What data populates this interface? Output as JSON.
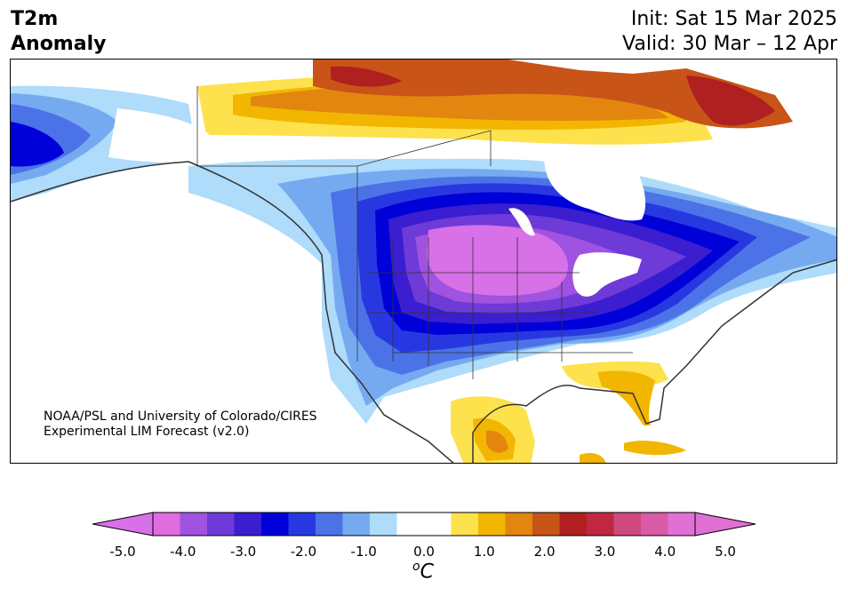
{
  "header": {
    "title_line1": "T2m",
    "title_line2": "Anomaly",
    "init": "Init: Sat 15 Mar 2025",
    "valid": "Valid: 30 Mar – 12 Apr"
  },
  "credit": {
    "line1": "NOAA/PSL and University of Colorado/CIRES",
    "line2": "Experimental LIM Forecast (v2.0)"
  },
  "colorbar": {
    "unit_symbol": "o",
    "unit_letter": "C",
    "tick_labels": [
      "-5.0",
      "-4.0",
      "-3.0",
      "-2.0",
      "-1.0",
      "0.0",
      "1.0",
      "2.0",
      "3.0",
      "4.0",
      "5.0"
    ],
    "colors": [
      "#e06ce0",
      "#a052e0",
      "#6e3ad8",
      "#3a1ed0",
      "#0000d8",
      "#2838e0",
      "#4c72e8",
      "#76aaf0",
      "#aedcfa",
      "#ffffff",
      "#ffffff",
      "#fde24e",
      "#f2b600",
      "#e28610",
      "#c85418",
      "#b02020",
      "#c02840",
      "#d04880",
      "#d85ca8",
      "#e070d4"
    ],
    "under_color": "#d870e8",
    "over_color": "#e070d4"
  },
  "map_colors": {
    "land_outline": "#333333",
    "cold_1": "#aedcfa",
    "cold_2": "#76aaf0",
    "cold_3": "#4c72e8",
    "cold_4": "#2838e0",
    "cold_5": "#0000d8",
    "cold_6": "#3a1ed0",
    "cold_7": "#6e3ad8",
    "cold_8": "#a052e0",
    "cold_9": "#d870e8",
    "warm_1": "#fde24e",
    "warm_2": "#f2b600",
    "warm_3": "#e28610",
    "warm_4": "#c85418",
    "warm_5": "#b02020"
  }
}
